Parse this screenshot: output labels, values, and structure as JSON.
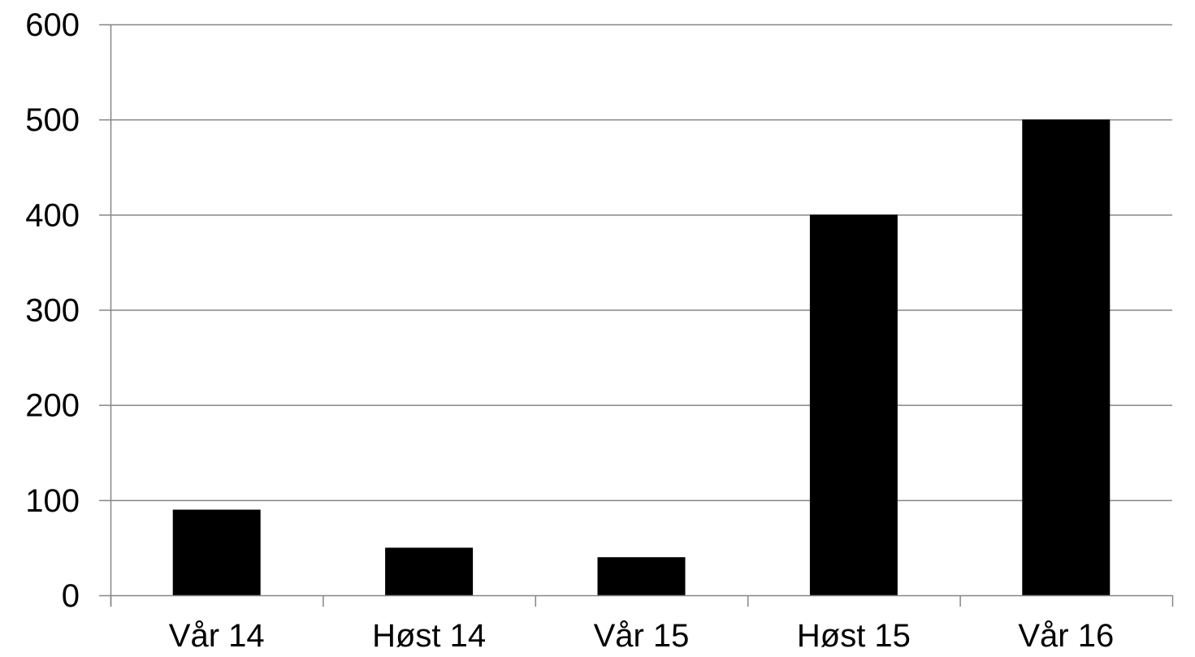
{
  "chart_data": {
    "type": "bar",
    "categories": [
      "Vår 14",
      "Høst 14",
      "Vår 15",
      "Høst 15",
      "Vår 16"
    ],
    "values": [
      90,
      50,
      40,
      400,
      500
    ],
    "ylim": [
      0,
      600
    ],
    "yticks": [
      0,
      100,
      200,
      300,
      400,
      500,
      600
    ],
    "grid": true,
    "colors": {
      "bar": "#000000",
      "gridline": "#868686",
      "axis": "#868686",
      "text": "#000000"
    }
  }
}
